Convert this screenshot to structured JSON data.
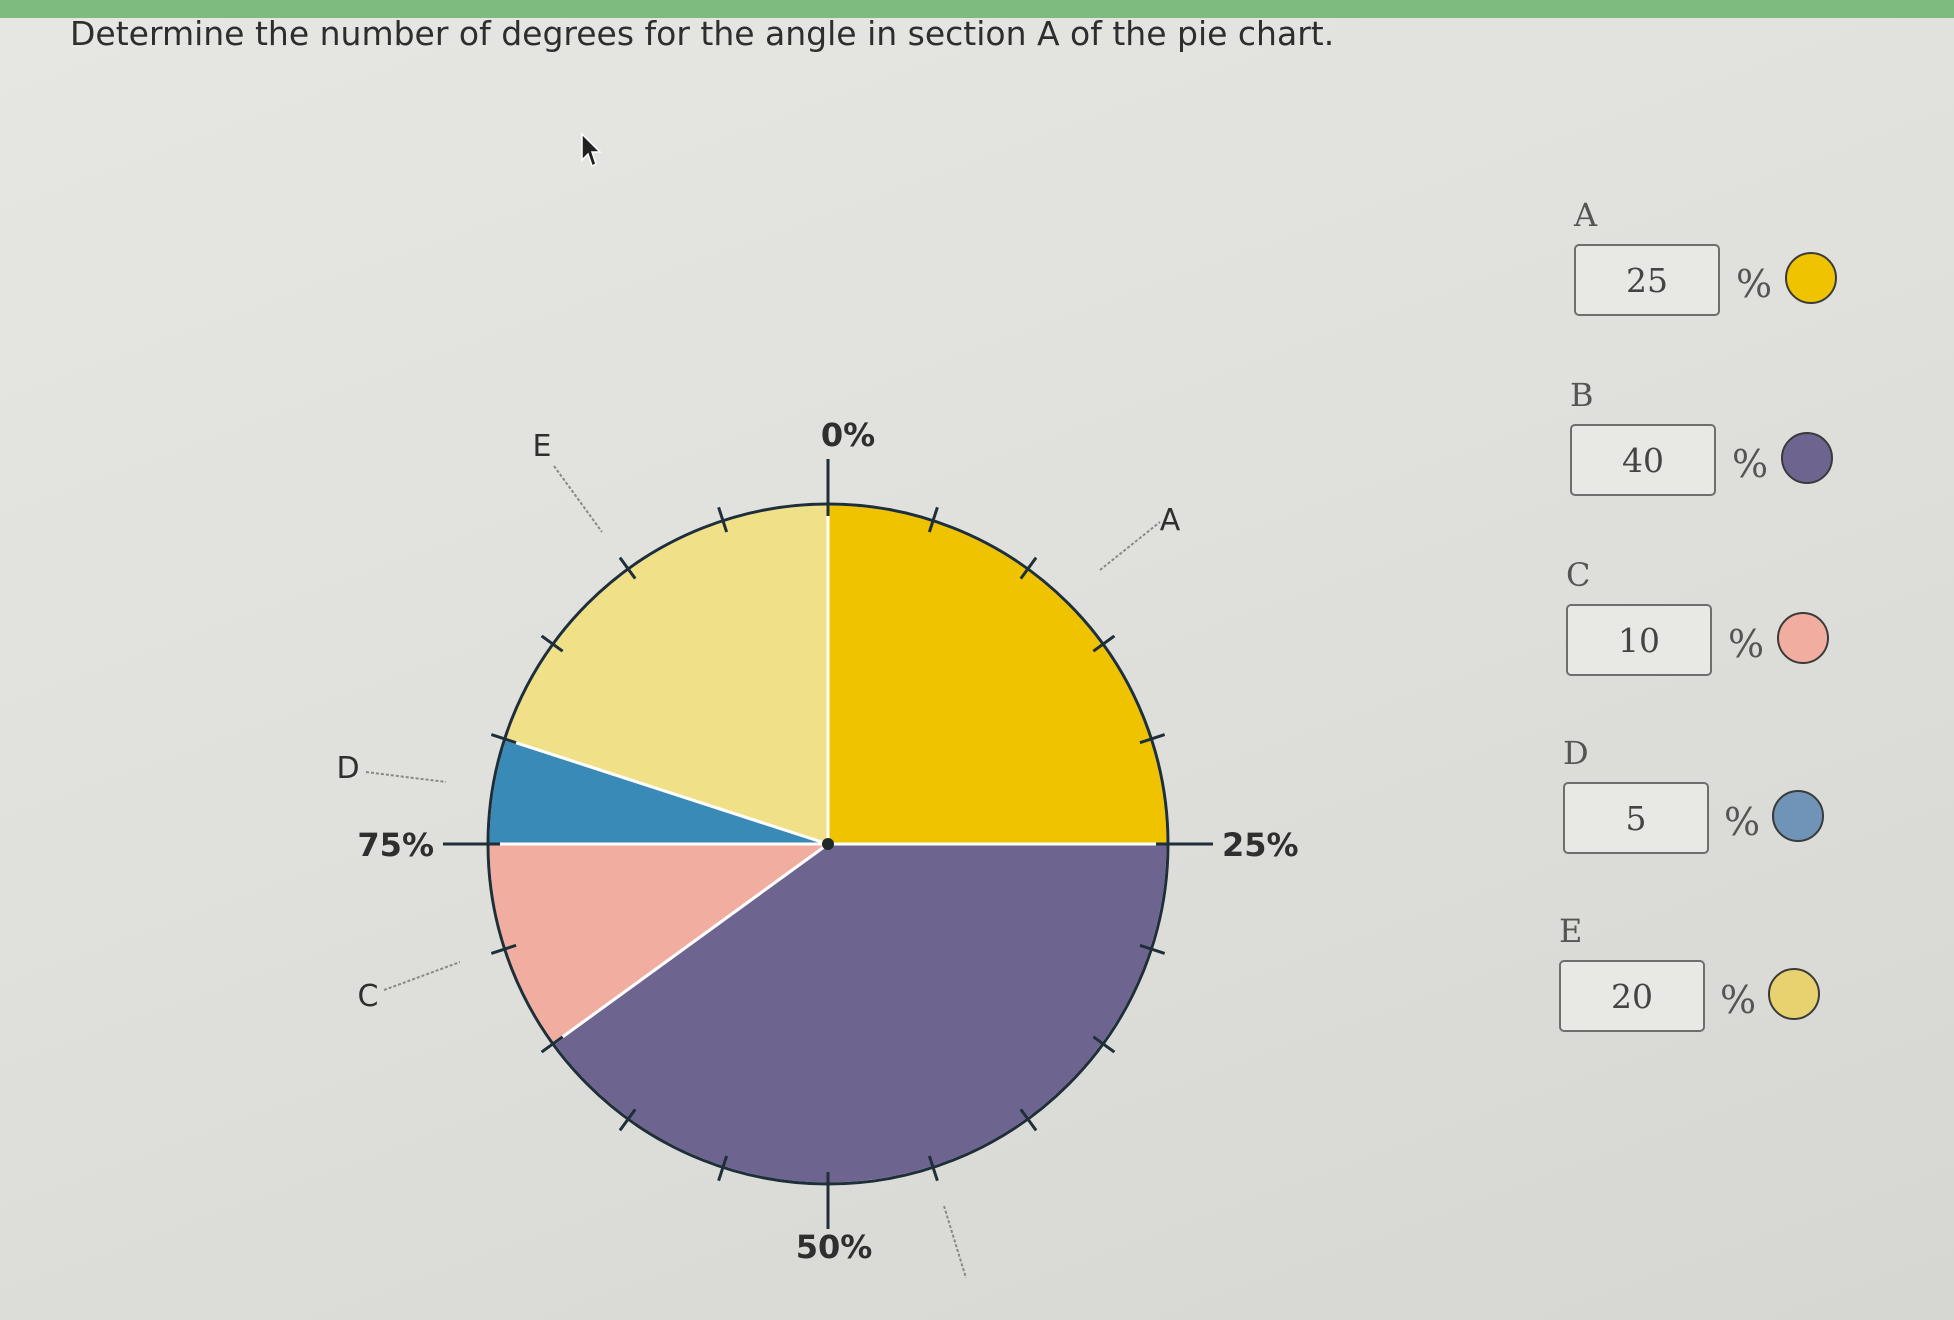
{
  "question": "Determine the number of degrees for the angle in section A of the pie chart.",
  "colors": {
    "A": "#efc300",
    "B": "#6e6490",
    "C": "#f1aea0",
    "D": "#3a8ab8",
    "E": "#f0e088"
  },
  "chart_data": {
    "type": "pie",
    "slices": [
      {
        "label": "A",
        "value": 25
      },
      {
        "label": "B",
        "value": 40
      },
      {
        "label": "C",
        "value": 10
      },
      {
        "label": "D",
        "value": 5
      },
      {
        "label": "E",
        "value": 20
      }
    ],
    "tick_labels": [
      "0%",
      "25%",
      "50%",
      "75%"
    ],
    "start": "top",
    "direction": "clockwise"
  },
  "entries": [
    {
      "label": "A",
      "value": "25",
      "unit": "%",
      "color_name": "yellow"
    },
    {
      "label": "B",
      "value": "40",
      "unit": "%",
      "color_name": "purple"
    },
    {
      "label": "C",
      "value": "10",
      "unit": "%",
      "color_name": "pink"
    },
    {
      "label": "D",
      "value": "5",
      "unit": "%",
      "color_name": "blue"
    },
    {
      "label": "E",
      "value": "20",
      "unit": "%",
      "color_name": "light-yellow"
    }
  ]
}
